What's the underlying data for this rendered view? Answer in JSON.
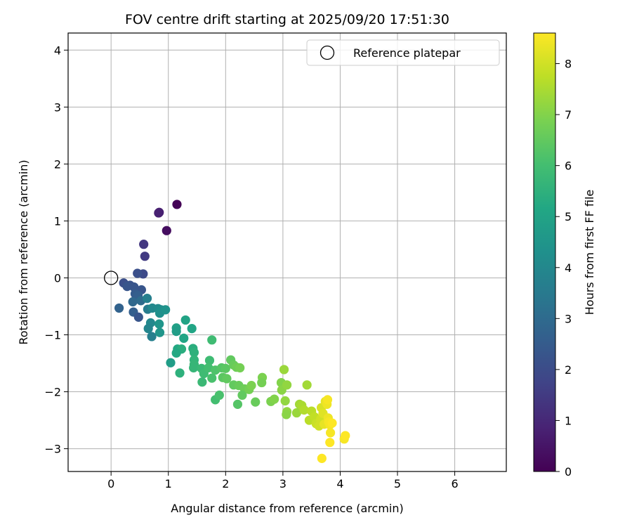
{
  "chart_data": {
    "type": "scatter",
    "title": "FOV centre drift starting at 2025/09/20 17:51:30",
    "xlabel": "Angular distance from reference (arcmin)",
    "ylabel": "Rotation from reference (arcmin)",
    "xlim": [
      -0.75,
      6.9
    ],
    "ylim": [
      -3.4,
      4.3
    ],
    "xticks": [
      0,
      1,
      2,
      3,
      4,
      5,
      6
    ],
    "yticks": [
      -3,
      -2,
      -1,
      0,
      1,
      2,
      3,
      4
    ],
    "xtick_labels": [
      "0",
      "1",
      "2",
      "3",
      "4",
      "5",
      "6"
    ],
    "ytick_labels": [
      "−3",
      "−2",
      "−1",
      "0",
      "1",
      "2",
      "3",
      "4"
    ],
    "grid": true,
    "legend": {
      "position": "top-right",
      "entries": [
        "Reference platepar"
      ]
    },
    "reference_point": {
      "x": 0,
      "y": 0
    },
    "colorbar": {
      "label": "Hours from first FF file",
      "range": [
        0,
        8.6
      ],
      "ticks": [
        0,
        1,
        2,
        3,
        4,
        5,
        6,
        7,
        8
      ],
      "tick_labels": [
        "0",
        "1",
        "2",
        "3",
        "4",
        "5",
        "6",
        "7",
        "8"
      ],
      "colormap": "viridis"
    },
    "points": [
      {
        "x": 1.15,
        "y": 1.29,
        "h": 0.05
      },
      {
        "x": 0.97,
        "y": 0.83,
        "h": 0.3
      },
      {
        "x": 0.84,
        "y": 1.15,
        "h": 0.7
      },
      {
        "x": 0.83,
        "y": 1.14,
        "h": 0.8
      },
      {
        "x": 0.57,
        "y": 0.59,
        "h": 1.4
      },
      {
        "x": 0.59,
        "y": 0.38,
        "h": 1.5
      },
      {
        "x": 0.56,
        "y": 0.07,
        "h": 1.9
      },
      {
        "x": 0.46,
        "y": 0.08,
        "h": 2.1
      },
      {
        "x": 0.22,
        "y": -0.09,
        "h": 2.1
      },
      {
        "x": 0.33,
        "y": -0.13,
        "h": 2.2
      },
      {
        "x": 0.28,
        "y": -0.15,
        "h": 2.3
      },
      {
        "x": 0.4,
        "y": -0.16,
        "h": 2.3
      },
      {
        "x": 0.53,
        "y": -0.21,
        "h": 2.3
      },
      {
        "x": 0.42,
        "y": -0.28,
        "h": 2.5
      },
      {
        "x": 0.47,
        "y": -0.31,
        "h": 2.6
      },
      {
        "x": 0.38,
        "y": -0.42,
        "h": 2.9
      },
      {
        "x": 0.52,
        "y": -0.4,
        "h": 3.0
      },
      {
        "x": 0.14,
        "y": -0.53,
        "h": 2.7
      },
      {
        "x": 0.39,
        "y": -0.6,
        "h": 2.6
      },
      {
        "x": 0.48,
        "y": -0.69,
        "h": 2.3
      },
      {
        "x": 0.63,
        "y": -0.36,
        "h": 3.7
      },
      {
        "x": 0.64,
        "y": -0.55,
        "h": 3.6
      },
      {
        "x": 0.72,
        "y": -0.53,
        "h": 4.0
      },
      {
        "x": 0.82,
        "y": -0.54,
        "h": 4.1
      },
      {
        "x": 0.87,
        "y": -0.56,
        "h": 4.2
      },
      {
        "x": 0.85,
        "y": -0.62,
        "h": 4.3
      },
      {
        "x": 0.95,
        "y": -0.56,
        "h": 4.4
      },
      {
        "x": 0.69,
        "y": -0.79,
        "h": 4.0
      },
      {
        "x": 0.65,
        "y": -0.89,
        "h": 3.9
      },
      {
        "x": 0.71,
        "y": -1.03,
        "h": 3.7
      },
      {
        "x": 0.84,
        "y": -0.81,
        "h": 4.5
      },
      {
        "x": 0.85,
        "y": -0.96,
        "h": 4.5
      },
      {
        "x": 1.04,
        "y": -1.49,
        "h": 4.8
      },
      {
        "x": 1.14,
        "y": -0.88,
        "h": 4.9
      },
      {
        "x": 1.14,
        "y": -0.94,
        "h": 4.8
      },
      {
        "x": 1.3,
        "y": -0.74,
        "h": 5.0
      },
      {
        "x": 1.41,
        "y": -0.89,
        "h": 5.1
      },
      {
        "x": 1.27,
        "y": -1.06,
        "h": 5.1
      },
      {
        "x": 1.16,
        "y": -1.25,
        "h": 5.2
      },
      {
        "x": 1.23,
        "y": -1.25,
        "h": 5.4
      },
      {
        "x": 1.14,
        "y": -1.32,
        "h": 5.2
      },
      {
        "x": 1.2,
        "y": -1.67,
        "h": 5.5
      },
      {
        "x": 1.43,
        "y": -1.24,
        "h": 5.4
      },
      {
        "x": 1.45,
        "y": -1.31,
        "h": 5.5
      },
      {
        "x": 1.45,
        "y": -1.44,
        "h": 5.6
      },
      {
        "x": 1.45,
        "y": -1.52,
        "h": 5.7
      },
      {
        "x": 1.44,
        "y": -1.58,
        "h": 5.7
      },
      {
        "x": 1.58,
        "y": -1.59,
        "h": 5.8
      },
      {
        "x": 1.62,
        "y": -1.68,
        "h": 5.9
      },
      {
        "x": 1.59,
        "y": -1.83,
        "h": 5.8
      },
      {
        "x": 1.72,
        "y": -1.45,
        "h": 5.9
      },
      {
        "x": 1.76,
        "y": -1.09,
        "h": 5.9
      },
      {
        "x": 1.7,
        "y": -1.58,
        "h": 6.0
      },
      {
        "x": 1.76,
        "y": -1.76,
        "h": 6.1
      },
      {
        "x": 1.82,
        "y": -1.62,
        "h": 6.2
      },
      {
        "x": 1.82,
        "y": -2.14,
        "h": 6.0
      },
      {
        "x": 1.89,
        "y": -2.06,
        "h": 6.1
      },
      {
        "x": 1.93,
        "y": -1.58,
        "h": 6.3
      },
      {
        "x": 2.0,
        "y": -1.59,
        "h": 6.4
      },
      {
        "x": 1.95,
        "y": -1.75,
        "h": 6.4
      },
      {
        "x": 2.02,
        "y": -1.77,
        "h": 6.5
      },
      {
        "x": 2.09,
        "y": -1.44,
        "h": 6.5
      },
      {
        "x": 2.14,
        "y": -1.53,
        "h": 6.6
      },
      {
        "x": 2.19,
        "y": -1.57,
        "h": 6.7
      },
      {
        "x": 2.25,
        "y": -1.58,
        "h": 6.8
      },
      {
        "x": 2.14,
        "y": -1.88,
        "h": 6.5
      },
      {
        "x": 2.23,
        "y": -1.89,
        "h": 6.6
      },
      {
        "x": 2.33,
        "y": -1.95,
        "h": 6.7
      },
      {
        "x": 2.29,
        "y": -2.06,
        "h": 6.5
      },
      {
        "x": 2.41,
        "y": -1.96,
        "h": 6.8
      },
      {
        "x": 2.45,
        "y": -1.89,
        "h": 6.9
      },
      {
        "x": 2.52,
        "y": -2.18,
        "h": 6.6
      },
      {
        "x": 2.21,
        "y": -2.22,
        "h": 6.3
      },
      {
        "x": 2.64,
        "y": -1.75,
        "h": 6.9
      },
      {
        "x": 2.63,
        "y": -1.84,
        "h": 6.8
      },
      {
        "x": 2.79,
        "y": -2.17,
        "h": 6.9
      },
      {
        "x": 2.85,
        "y": -2.13,
        "h": 7.0
      },
      {
        "x": 2.97,
        "y": -1.84,
        "h": 7.0
      },
      {
        "x": 2.98,
        "y": -1.97,
        "h": 7.1
      },
      {
        "x": 3.07,
        "y": -1.88,
        "h": 7.2
      },
      {
        "x": 3.02,
        "y": -1.61,
        "h": 7.3
      },
      {
        "x": 3.04,
        "y": -2.16,
        "h": 7.2
      },
      {
        "x": 3.07,
        "y": -2.35,
        "h": 7.2
      },
      {
        "x": 3.06,
        "y": -2.4,
        "h": 7.1
      },
      {
        "x": 3.24,
        "y": -2.37,
        "h": 7.3
      },
      {
        "x": 3.29,
        "y": -2.22,
        "h": 7.4
      },
      {
        "x": 3.33,
        "y": -2.24,
        "h": 7.5
      },
      {
        "x": 3.37,
        "y": -2.32,
        "h": 7.6
      },
      {
        "x": 3.42,
        "y": -1.88,
        "h": 7.4
      },
      {
        "x": 3.46,
        "y": -2.5,
        "h": 7.7
      },
      {
        "x": 3.5,
        "y": -2.34,
        "h": 7.7
      },
      {
        "x": 3.55,
        "y": -2.44,
        "h": 7.8
      },
      {
        "x": 3.58,
        "y": -2.56,
        "h": 7.9
      },
      {
        "x": 3.63,
        "y": -2.6,
        "h": 8.0
      },
      {
        "x": 3.66,
        "y": -2.48,
        "h": 8.0
      },
      {
        "x": 3.67,
        "y": -2.28,
        "h": 8.1
      },
      {
        "x": 3.7,
        "y": -2.38,
        "h": 8.2
      },
      {
        "x": 3.72,
        "y": -2.57,
        "h": 8.3
      },
      {
        "x": 3.74,
        "y": -2.17,
        "h": 8.3
      },
      {
        "x": 3.77,
        "y": -2.22,
        "h": 8.4
      },
      {
        "x": 3.78,
        "y": -2.14,
        "h": 8.5
      },
      {
        "x": 3.79,
        "y": -2.46,
        "h": 8.4
      },
      {
        "x": 3.8,
        "y": -2.53,
        "h": 8.5
      },
      {
        "x": 3.82,
        "y": -2.58,
        "h": 8.5
      },
      {
        "x": 3.83,
        "y": -2.72,
        "h": 8.5
      },
      {
        "x": 3.82,
        "y": -2.89,
        "h": 8.6
      },
      {
        "x": 3.86,
        "y": -2.55,
        "h": 8.6
      },
      {
        "x": 3.68,
        "y": -3.17,
        "h": 8.6
      },
      {
        "x": 4.07,
        "y": -2.83,
        "h": 8.5
      },
      {
        "x": 4.09,
        "y": -2.77,
        "h": 8.6
      }
    ]
  }
}
